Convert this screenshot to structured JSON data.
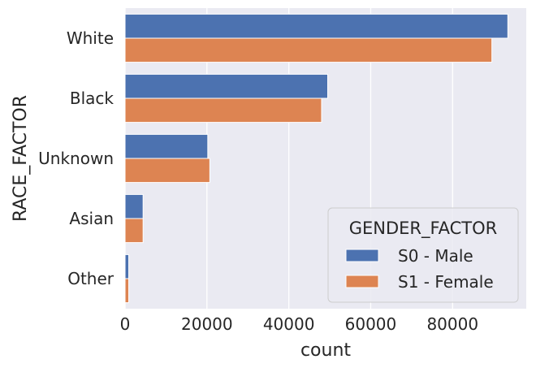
{
  "chart_data": {
    "type": "bar",
    "orientation": "horizontal",
    "categories": [
      "White",
      "Black",
      "Unknown",
      "Asian",
      "Other"
    ],
    "series": [
      {
        "name": "S0 - Male",
        "color": "#4c72b0",
        "values": [
          93500,
          49500,
          20200,
          4400,
          900
        ]
      },
      {
        "name": "S1 - Female",
        "color": "#dd8452",
        "values": [
          89600,
          48000,
          20700,
          4400,
          900
        ]
      }
    ],
    "xlabel": "count",
    "ylabel": "RACE_FACTOR",
    "xlim": [
      0,
      98000
    ],
    "xticks": [
      0,
      20000,
      40000,
      60000,
      80000
    ],
    "xtick_labels": [
      "0",
      "20000",
      "40000",
      "60000",
      "80000"
    ],
    "grid": true,
    "legend": {
      "title": "GENDER_FACTOR",
      "placement": "bottom-right"
    },
    "background": "#eaeaf2"
  }
}
